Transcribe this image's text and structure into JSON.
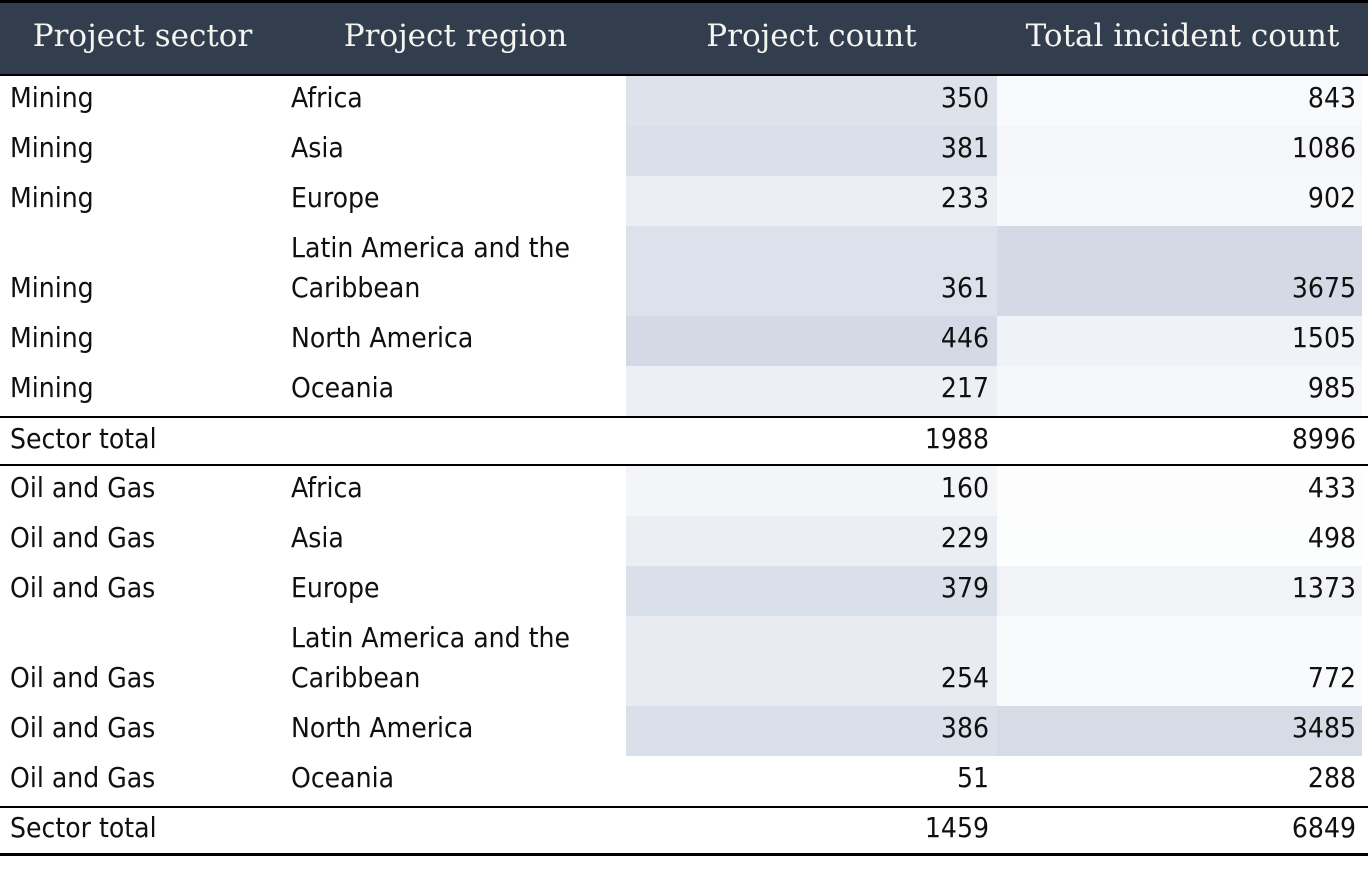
{
  "table": {
    "columns": [
      {
        "label": "Project sector",
        "align": "left"
      },
      {
        "label": "Project region",
        "align": "left"
      },
      {
        "label": "Project count",
        "align": "right"
      },
      {
        "label": "Total incident count",
        "align": "right"
      }
    ],
    "rows": [
      {
        "type": "data",
        "sector": "Mining",
        "region": "Africa",
        "project_count": 350,
        "incident_count": 843
      },
      {
        "type": "data",
        "sector": "Mining",
        "region": "Asia",
        "project_count": 381,
        "incident_count": 1086
      },
      {
        "type": "data",
        "sector": "Mining",
        "region": "Europe",
        "project_count": 233,
        "incident_count": 902
      },
      {
        "type": "data",
        "sector": "Mining",
        "region": "Latin America and the Caribbean",
        "project_count": 361,
        "incident_count": 3675
      },
      {
        "type": "data",
        "sector": "Mining",
        "region": "North America",
        "project_count": 446,
        "incident_count": 1505
      },
      {
        "type": "data",
        "sector": "Mining",
        "region": "Oceania",
        "project_count": 217,
        "incident_count": 985
      },
      {
        "type": "total",
        "label": "Sector total",
        "project_count": 1988,
        "incident_count": 8996
      },
      {
        "type": "data",
        "sector": "Oil and Gas",
        "region": "Africa",
        "project_count": 160,
        "incident_count": 433
      },
      {
        "type": "data",
        "sector": "Oil and Gas",
        "region": "Asia",
        "project_count": 229,
        "incident_count": 498
      },
      {
        "type": "data",
        "sector": "Oil and Gas",
        "region": "Europe",
        "project_count": 379,
        "incident_count": 1373
      },
      {
        "type": "data",
        "sector": "Oil and Gas",
        "region": "Latin America and the Caribbean",
        "project_count": 254,
        "incident_count": 772
      },
      {
        "type": "data",
        "sector": "Oil and Gas",
        "region": "North America",
        "project_count": 386,
        "incident_count": 3485
      },
      {
        "type": "data",
        "sector": "Oil and Gas",
        "region": "Oceania",
        "project_count": 51,
        "incident_count": 288
      },
      {
        "type": "total",
        "label": "Sector total",
        "project_count": 1459,
        "incident_count": 6849
      }
    ]
  },
  "colors": {
    "header_bg": "#323e4e",
    "header_text": "#f4f4f0",
    "border": "#000000",
    "text": "#101010",
    "shade_min": "#ffffff",
    "shade_max": "#d3dae5"
  },
  "chart_data": {
    "type": "table",
    "title": "",
    "columns": [
      "Project sector",
      "Project region",
      "Project count",
      "Total incident count"
    ],
    "rows": [
      [
        "Mining",
        "Africa",
        350,
        843
      ],
      [
        "Mining",
        "Asia",
        381,
        1086
      ],
      [
        "Mining",
        "Europe",
        233,
        902
      ],
      [
        "Mining",
        "Latin America and the Caribbean",
        361,
        3675
      ],
      [
        "Mining",
        "North America",
        446,
        1505
      ],
      [
        "Mining",
        "Oceania",
        217,
        985
      ],
      [
        "Sector total",
        "",
        1988,
        8996
      ],
      [
        "Oil and Gas",
        "Africa",
        160,
        433
      ],
      [
        "Oil and Gas",
        "Asia",
        229,
        498
      ],
      [
        "Oil and Gas",
        "Europe",
        379,
        1373
      ],
      [
        "Oil and Gas",
        "Latin America and the Caribbean",
        254,
        772
      ],
      [
        "Oil and Gas",
        "North America",
        386,
        3485
      ],
      [
        "Oil and Gas",
        "Oceania",
        51,
        288
      ],
      [
        "Sector total",
        "",
        1459,
        6849
      ]
    ],
    "notes": "Numeric cells carry a per-column white-to-steel-blue color scale keyed to cell value; sector total rows unshaded with black rules above and below"
  }
}
